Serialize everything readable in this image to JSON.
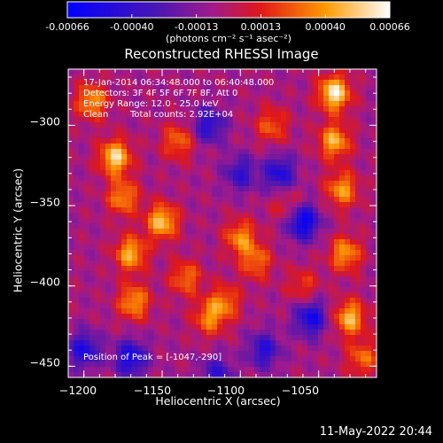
{
  "colorbar": {
    "colormap": "blue-purple-red-yellow-white",
    "ticks": [
      "-0.00066",
      "-0.00040",
      "-0.00013",
      "0.00013",
      "0.00040",
      "0.00066"
    ],
    "unit_label": "(photons cm⁻² s⁻¹ asec⁻²)"
  },
  "chart_data": {
    "type": "heatmap",
    "title": "Reconstructed RHESSI Image",
    "xlabel": "Heliocentric X (arcsec)",
    "ylabel": "Heliocentric Y (arcsec)",
    "xlim": [
      -1210,
      -1013
    ],
    "ylim": [
      -457,
      -265
    ],
    "xticks": [
      -1200,
      -1150,
      -1100,
      -1050
    ],
    "yticks": [
      -300,
      -350,
      -400,
      -450
    ],
    "value_range": [
      -0.00066,
      0.00066
    ],
    "peak_position": [
      -1047,
      -290
    ],
    "hot_regions": [
      {
        "x": -1195,
        "y": -285,
        "value": 0.00045
      },
      {
        "x": -1180,
        "y": -320,
        "value": 0.0006
      },
      {
        "x": -1175,
        "y": -345,
        "value": 0.00042
      },
      {
        "x": -1170,
        "y": -380,
        "value": 0.0005
      },
      {
        "x": -1168,
        "y": -410,
        "value": 0.00045
      },
      {
        "x": -1150,
        "y": -360,
        "value": 0.00055
      },
      {
        "x": -1140,
        "y": -310,
        "value": 0.00035
      },
      {
        "x": -1135,
        "y": -395,
        "value": 0.00036
      },
      {
        "x": -1120,
        "y": -420,
        "value": 0.00038
      },
      {
        "x": -1110,
        "y": -410,
        "value": 0.00035
      },
      {
        "x": -1100,
        "y": -370,
        "value": 0.00042
      },
      {
        "x": -1090,
        "y": -385,
        "value": 0.00035
      },
      {
        "x": -1080,
        "y": -300,
        "value": 0.00032
      },
      {
        "x": -1070,
        "y": -350,
        "value": 0.00022
      },
      {
        "x": -1060,
        "y": -400,
        "value": 0.00025
      },
      {
        "x": -1040,
        "y": -280,
        "value": 0.00066
      },
      {
        "x": -1040,
        "y": -310,
        "value": 0.0005
      },
      {
        "x": -1035,
        "y": -340,
        "value": 0.00045
      },
      {
        "x": -1033,
        "y": -380,
        "value": 0.00045
      },
      {
        "x": -1030,
        "y": -420,
        "value": 0.00052
      },
      {
        "x": -1022,
        "y": -445,
        "value": 0.00035
      }
    ],
    "cold_regions": [
      {
        "x": -1200,
        "y": -440,
        "value": -0.00045
      },
      {
        "x": -1170,
        "y": -445,
        "value": -0.0005
      },
      {
        "x": -1120,
        "y": -300,
        "value": -0.0004
      },
      {
        "x": -1100,
        "y": -330,
        "value": -0.00035
      },
      {
        "x": -1075,
        "y": -330,
        "value": -0.00045
      },
      {
        "x": -1060,
        "y": -360,
        "value": -0.0006
      },
      {
        "x": -1055,
        "y": -420,
        "value": -0.0005
      },
      {
        "x": -1085,
        "y": -440,
        "value": -0.0004
      },
      {
        "x": -1115,
        "y": -455,
        "value": -0.00035
      }
    ]
  },
  "info": {
    "time_range": "17-Jan-2014 06:34:48.000 to 06:40:48.000",
    "detectors": "Detectors: 3F 4F 5F 6F 7F 8F, Att 0",
    "energy_range": "Energy Range: 12.0 - 25.0 keV",
    "method_label": "Clean",
    "total_counts": "Total counts: 2.92E+04",
    "peak_position": "Position of Peak = [-1047,-290]"
  },
  "footer": {
    "timestamp": "11-May-2022 20:44"
  }
}
